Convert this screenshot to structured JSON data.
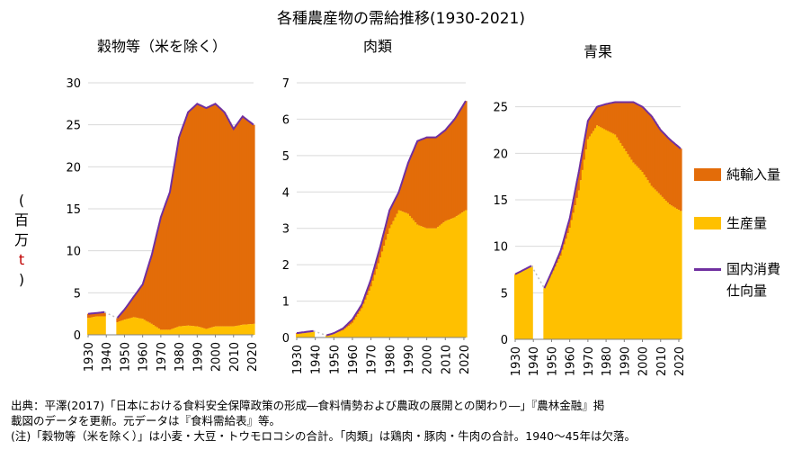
{
  "title": "各種農産物の需給推移(1930-2021)",
  "y_unit": [
    "(",
    "百",
    "万",
    "t",
    ")"
  ],
  "legend": {
    "net_import": "純輸入量",
    "production": "生産量",
    "domestic_line1": "国内消費",
    "domestic_line2": "仕向量"
  },
  "colors": {
    "net_import": "#e36c09",
    "production": "#ffc000",
    "domestic": "#7030a0",
    "grid": "#d9d9d9",
    "missing": "#bfbfbf"
  },
  "footnotes": [
    "出典：平澤(2017)「日本における食料安全保障政策の形成―食料情勢および農政の展開との関わり―」『農林金融』掲",
    "載図のデータを更新。元データは『食料需給表』等。",
    "(注)「穀物等（米を除く）」は小麦・大豆・トウモロコシの合計。「肉類」は鶏肉・豚肉・牛肉の合計。1940～45年は欠落。"
  ],
  "chart_data": [
    {
      "type": "area",
      "title": "穀物等（米を除く）",
      "ylim": [
        0,
        30
      ],
      "yticks": [
        0,
        5,
        10,
        15,
        20,
        25,
        30
      ],
      "xlim": [
        1930,
        2021
      ],
      "xticks": [
        1930,
        1940,
        1950,
        1960,
        1970,
        1980,
        1990,
        2000,
        2010,
        2020
      ],
      "gap": [
        1940,
        1945
      ],
      "series": [
        {
          "name": "生産量",
          "points": [
            [
              1930,
              2.0
            ],
            [
              1935,
              2.2
            ],
            [
              1939,
              2.2
            ],
            [
              1946,
              1.5
            ],
            [
              1950,
              1.8
            ],
            [
              1955,
              2.1
            ],
            [
              1960,
              1.9
            ],
            [
              1965,
              1.3
            ],
            [
              1970,
              0.6
            ],
            [
              1975,
              0.6
            ],
            [
              1980,
              1.0
            ],
            [
              1985,
              1.1
            ],
            [
              1990,
              1.0
            ],
            [
              1995,
              0.7
            ],
            [
              2000,
              1.0
            ],
            [
              2005,
              1.0
            ],
            [
              2010,
              1.0
            ],
            [
              2015,
              1.2
            ],
            [
              2021,
              1.3
            ]
          ]
        },
        {
          "name": "国内消費仕向量",
          "points": [
            [
              1930,
              2.5
            ],
            [
              1935,
              2.6
            ],
            [
              1939,
              2.7
            ],
            [
              1946,
              2.0
            ],
            [
              1950,
              3.0
            ],
            [
              1955,
              4.5
            ],
            [
              1960,
              6.0
            ],
            [
              1965,
              9.5
            ],
            [
              1970,
              14.0
            ],
            [
              1975,
              17.0
            ],
            [
              1980,
              23.5
            ],
            [
              1985,
              26.5
            ],
            [
              1990,
              27.5
            ],
            [
              1995,
              27.0
            ],
            [
              2000,
              27.5
            ],
            [
              2005,
              26.5
            ],
            [
              2010,
              24.5
            ],
            [
              2015,
              26.0
            ],
            [
              2021,
              25.0
            ]
          ]
        }
      ]
    },
    {
      "type": "area",
      "title": "肉類",
      "ylim": [
        0,
        7
      ],
      "yticks": [
        0,
        1,
        2,
        3,
        4,
        5,
        6,
        7
      ],
      "xlim": [
        1930,
        2021
      ],
      "xticks": [
        1930,
        1940,
        1950,
        1960,
        1970,
        1980,
        1990,
        2000,
        2010,
        2020
      ],
      "gap": [
        1940,
        1945
      ],
      "series": [
        {
          "name": "生産量",
          "points": [
            [
              1930,
              0.1
            ],
            [
              1939,
              0.15
            ],
            [
              1946,
              0.05
            ],
            [
              1950,
              0.1
            ],
            [
              1955,
              0.2
            ],
            [
              1960,
              0.4
            ],
            [
              1965,
              0.8
            ],
            [
              1970,
              1.4
            ],
            [
              1975,
              2.2
            ],
            [
              1980,
              3.0
            ],
            [
              1985,
              3.5
            ],
            [
              1990,
              3.4
            ],
            [
              1995,
              3.1
            ],
            [
              2000,
              3.0
            ],
            [
              2005,
              3.0
            ],
            [
              2010,
              3.2
            ],
            [
              2015,
              3.3
            ],
            [
              2021,
              3.5
            ]
          ]
        },
        {
          "name": "国内消費仕向量",
          "points": [
            [
              1930,
              0.12
            ],
            [
              1939,
              0.18
            ],
            [
              1946,
              0.06
            ],
            [
              1950,
              0.12
            ],
            [
              1955,
              0.25
            ],
            [
              1960,
              0.5
            ],
            [
              1965,
              0.9
            ],
            [
              1970,
              1.6
            ],
            [
              1975,
              2.5
            ],
            [
              1980,
              3.5
            ],
            [
              1985,
              4.0
            ],
            [
              1990,
              4.8
            ],
            [
              1995,
              5.4
            ],
            [
              2000,
              5.5
            ],
            [
              2005,
              5.5
            ],
            [
              2010,
              5.7
            ],
            [
              2015,
              6.0
            ],
            [
              2021,
              6.5
            ]
          ]
        }
      ]
    },
    {
      "type": "area",
      "title": "青果",
      "ylim": [
        0,
        27
      ],
      "yticks": [
        0,
        5,
        10,
        15,
        20,
        25
      ],
      "xlim": [
        1930,
        2021
      ],
      "xticks": [
        1930,
        1940,
        1950,
        1960,
        1970,
        1980,
        1990,
        2000,
        2010,
        2020
      ],
      "gap": [
        1940,
        1945
      ],
      "series": [
        {
          "name": "生産量",
          "points": [
            [
              1930,
              7.0
            ],
            [
              1935,
              7.5
            ],
            [
              1939,
              7.8
            ],
            [
              1946,
              5.5
            ],
            [
              1950,
              7.0
            ],
            [
              1955,
              9.0
            ],
            [
              1960,
              12.0
            ],
            [
              1965,
              16.0
            ],
            [
              1970,
              21.5
            ],
            [
              1975,
              23.0
            ],
            [
              1980,
              22.5
            ],
            [
              1985,
              22.0
            ],
            [
              1990,
              20.5
            ],
            [
              1995,
              19.0
            ],
            [
              2000,
              18.0
            ],
            [
              2005,
              16.5
            ],
            [
              2010,
              15.5
            ],
            [
              2015,
              14.5
            ],
            [
              2021,
              13.8
            ]
          ]
        },
        {
          "name": "国内消費仕向量",
          "points": [
            [
              1930,
              7.0
            ],
            [
              1935,
              7.5
            ],
            [
              1939,
              7.9
            ],
            [
              1946,
              5.5
            ],
            [
              1950,
              7.2
            ],
            [
              1955,
              9.5
            ],
            [
              1960,
              13.0
            ],
            [
              1965,
              18.0
            ],
            [
              1970,
              23.5
            ],
            [
              1975,
              25.0
            ],
            [
              1980,
              25.3
            ],
            [
              1985,
              25.5
            ],
            [
              1990,
              25.5
            ],
            [
              1995,
              25.5
            ],
            [
              2000,
              25.0
            ],
            [
              2005,
              24.0
            ],
            [
              2010,
              22.5
            ],
            [
              2015,
              21.5
            ],
            [
              2021,
              20.5
            ]
          ]
        }
      ]
    }
  ]
}
